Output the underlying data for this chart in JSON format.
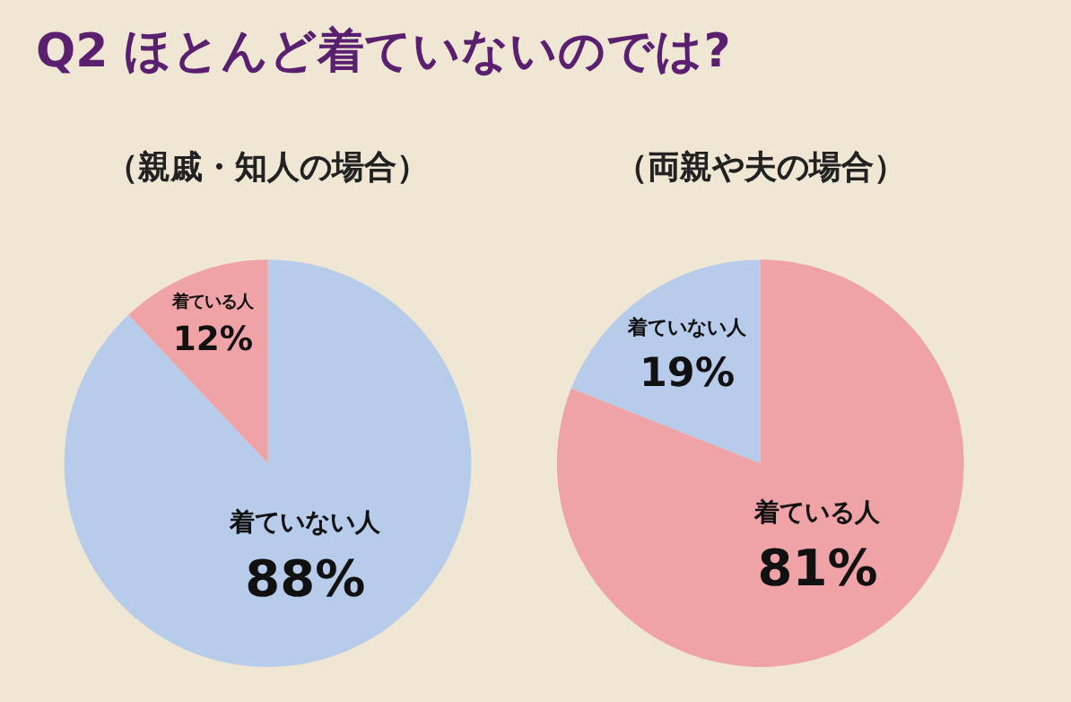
{
  "chart_data": [
    {
      "type": "pie",
      "title": "Q2 ほとんど着ていないのでは?",
      "subtitle": "（親戚・知人の場合）",
      "categories": [
        "着ていない人",
        "着ている人"
      ],
      "values": [
        88,
        12
      ],
      "value_labels": [
        "88%",
        "12%"
      ],
      "colors": [
        "#b7cbea",
        "#f0a3a6"
      ],
      "legend": false
    },
    {
      "type": "pie",
      "subtitle": "（両親や夫の場合）",
      "categories": [
        "着ている人",
        "着ていない人"
      ],
      "values": [
        81,
        19
      ],
      "value_labels": [
        "81%",
        "19%"
      ],
      "colors": [
        "#f0a3a6",
        "#b7cbea"
      ],
      "legend": false
    }
  ]
}
